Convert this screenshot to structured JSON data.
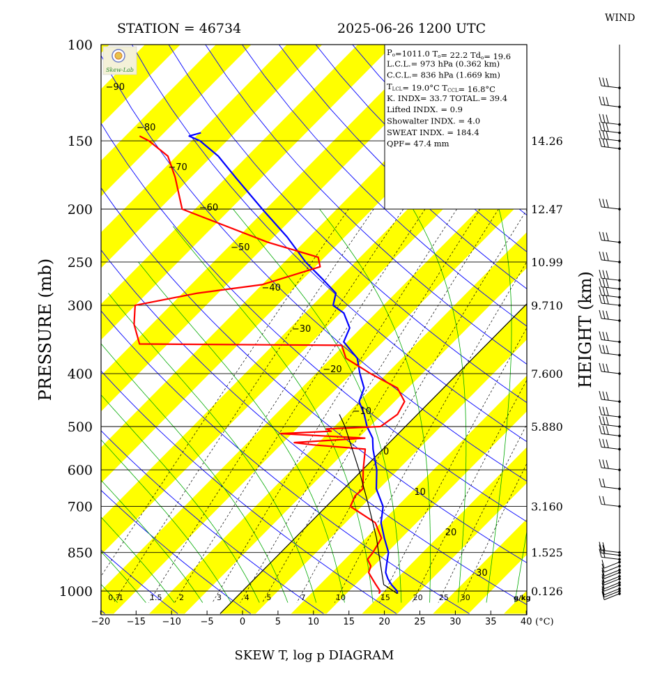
{
  "header": {
    "station": "STATION = 46734",
    "datetime": "2025-06-26 1200 UTC",
    "wind_label": "WIND",
    "title": "SKEW T, log p DIAGRAM",
    "pressure_label": "PRESSURE (mb)",
    "height_label": "HEIGHT (km)",
    "unit_c": "(°C)",
    "logo_text": "Skew-Lab"
  },
  "indices": [
    {
      "parts": [
        {
          "t": "P"
        },
        {
          "t": "o",
          "sub": true
        },
        {
          "t": "=1011.0  T"
        },
        {
          "t": "o",
          "sub": true
        },
        {
          "t": "= 22.2  Td"
        },
        {
          "t": "o",
          "sub": true
        },
        {
          "t": "= 19.6"
        }
      ]
    },
    {
      "parts": [
        {
          "t": "L.C.L.= 973 hPa (0.362 km)"
        }
      ]
    },
    {
      "parts": [
        {
          "t": "C.C.L.= 836 hPa (1.669 km)"
        }
      ]
    },
    {
      "parts": [
        {
          "t": "T"
        },
        {
          "t": "LCL",
          "sub": true
        },
        {
          "t": "= 19.0°C  T"
        },
        {
          "t": "CCL",
          "sub": true
        },
        {
          "t": "= 16.8°C"
        }
      ]
    },
    {
      "parts": [
        {
          "t": "K. INDX= 33.7  TOTAL.= 39.4"
        }
      ]
    },
    {
      "parts": [
        {
          "t": "Lifted INDX. =   0.9"
        }
      ]
    },
    {
      "parts": [
        {
          "t": "Showalter INDX. =    4.0"
        }
      ]
    },
    {
      "parts": [
        {
          "t": "SWEAT INDX. =  184.4"
        }
      ]
    },
    {
      "parts": [
        {
          "t": "QPF= 47.4 mm"
        }
      ]
    }
  ],
  "chart_data": {
    "type": "line",
    "title": "SKEW T, log p DIAGRAM",
    "xlabel": "(°C)",
    "ylabel": "PRESSURE (mb)",
    "y2label": "HEIGHT (km)",
    "y_scale": "log",
    "xlim": [
      -20,
      40
    ],
    "ylim": [
      1050,
      100
    ],
    "x_ticks": [
      -20,
      -15,
      -10,
      -5,
      0,
      5,
      10,
      15,
      20,
      25,
      30,
      35,
      40
    ],
    "pressure_ticks": [
      100,
      150,
      200,
      250,
      300,
      400,
      500,
      600,
      700,
      850,
      1000
    ],
    "height_ticks": [
      {
        "p": 150,
        "label": "14.26"
      },
      {
        "p": 200,
        "label": "12.47"
      },
      {
        "p": 250,
        "label": "10.99"
      },
      {
        "p": 300,
        "label": "9.710"
      },
      {
        "p": 400,
        "label": "7.600"
      },
      {
        "p": 500,
        "label": "5.880"
      },
      {
        "p": 700,
        "label": "3.160"
      },
      {
        "p": 850,
        "label": "1.525"
      },
      {
        "p": 1000,
        "label": "0.126"
      }
    ],
    "isotherm_labels": [
      -90,
      -80,
      -70,
      -60,
      -50,
      -40,
      -30,
      -20,
      -10,
      0,
      10,
      20,
      30
    ],
    "mixing_ratio_labels": [
      "0.7",
      "1",
      "1.5",
      "2",
      "3",
      "4",
      "5",
      "7",
      "10",
      "15",
      "20",
      "25",
      "30"
    ],
    "mixing_ratio_unit": "g/kg",
    "series": [
      {
        "name": "Temperature",
        "color": "#0000ff",
        "points": [
          [
            1011,
            22.2
          ],
          [
            1000,
            21.8
          ],
          [
            975,
            20.2
          ],
          [
            950,
            18.8
          ],
          [
            925,
            17.6
          ],
          [
            900,
            16.8
          ],
          [
            875,
            16.0
          ],
          [
            850,
            15.2
          ],
          [
            800,
            12.6
          ],
          [
            750,
            10.0
          ],
          [
            700,
            8.0
          ],
          [
            650,
            4.6
          ],
          [
            600,
            2.0
          ],
          [
            550,
            -1.4
          ],
          [
            525,
            -3.0
          ],
          [
            500,
            -5.4
          ],
          [
            475,
            -7.5
          ],
          [
            450,
            -10.0
          ],
          [
            425,
            -11.2
          ],
          [
            400,
            -13.8
          ],
          [
            375,
            -16.3
          ],
          [
            350,
            -20.5
          ],
          [
            330,
            -21.6
          ],
          [
            310,
            -24.5
          ],
          [
            300,
            -27.1
          ],
          [
            285,
            -28.4
          ],
          [
            270,
            -31.9
          ],
          [
            250,
            -37.0
          ],
          [
            225,
            -43.1
          ],
          [
            200,
            -50.5
          ],
          [
            175,
            -58.7
          ],
          [
            160,
            -64.1
          ],
          [
            150,
            -68.8
          ],
          [
            147,
            -71.0
          ],
          [
            145,
            -69.8
          ]
        ]
      },
      {
        "name": "Dewpoint",
        "color": "#ff0000",
        "points": [
          [
            1011,
            19.6
          ],
          [
            1000,
            19.4
          ],
          [
            975,
            18.0
          ],
          [
            950,
            16.6
          ],
          [
            925,
            15.2
          ],
          [
            900,
            14.6
          ],
          [
            875,
            13.2
          ],
          [
            850,
            13.0
          ],
          [
            800,
            12.2
          ],
          [
            750,
            9.2
          ],
          [
            700,
            3.4
          ],
          [
            670,
            2.6
          ],
          [
            650,
            2.7
          ],
          [
            600,
            0.1
          ],
          [
            550,
            -2.5
          ],
          [
            540,
            -10.5
          ],
          [
            535,
            -13.4
          ],
          [
            525,
            -4.1
          ],
          [
            515,
            -16.6
          ],
          [
            510,
            -9.8
          ],
          [
            505,
            -10.8
          ],
          [
            500,
            -3.5
          ],
          [
            475,
            -2.8
          ],
          [
            450,
            -3.6
          ],
          [
            425,
            -6.5
          ],
          [
            400,
            -12.3
          ],
          [
            375,
            -17.9
          ],
          [
            355,
            -20.3
          ],
          [
            353,
            -49.0
          ],
          [
            325,
            -52.5
          ],
          [
            300,
            -55.0
          ],
          [
            285,
            -47.9
          ],
          [
            275,
            -40.0
          ],
          [
            255,
            -34.3
          ],
          [
            245,
            -35.9
          ],
          [
            230,
            -45.1
          ],
          [
            200,
            -61.8
          ],
          [
            175,
            -67.2
          ],
          [
            160,
            -71.2
          ],
          [
            150,
            -76.0
          ],
          [
            147,
            -78.0
          ]
        ]
      },
      {
        "name": "Parcel",
        "color": "#000000",
        "points": [
          [
            1011,
            22.2
          ],
          [
            973,
            19.0
          ],
          [
            900,
            16.0
          ],
          [
            850,
            13.8
          ],
          [
            800,
            11.5
          ],
          [
            700,
            6.0
          ],
          [
            600,
            -0.5
          ],
          [
            500,
            -8.5
          ],
          [
            475,
            -11.0
          ]
        ]
      }
    ],
    "wind_pressures": [
      1011,
      1000,
      990,
      975,
      965,
      950,
      940,
      925,
      915,
      900,
      885,
      875,
      860,
      850,
      700,
      650,
      600,
      550,
      520,
      500,
      480,
      450,
      400,
      370,
      350,
      320,
      300,
      290,
      280,
      270,
      250,
      230,
      200,
      155,
      150,
      145,
      140,
      130,
      120
    ]
  },
  "colors": {
    "yellow_band": "#ffff00",
    "isotherm": "#000000",
    "dry_adiabat": "#0000ff",
    "moist_adiabat": "#00aa00",
    "mixing_ratio": "#000000",
    "temperature": "#0000ff",
    "dewpoint": "#ff0000",
    "parcel": "#000000"
  }
}
